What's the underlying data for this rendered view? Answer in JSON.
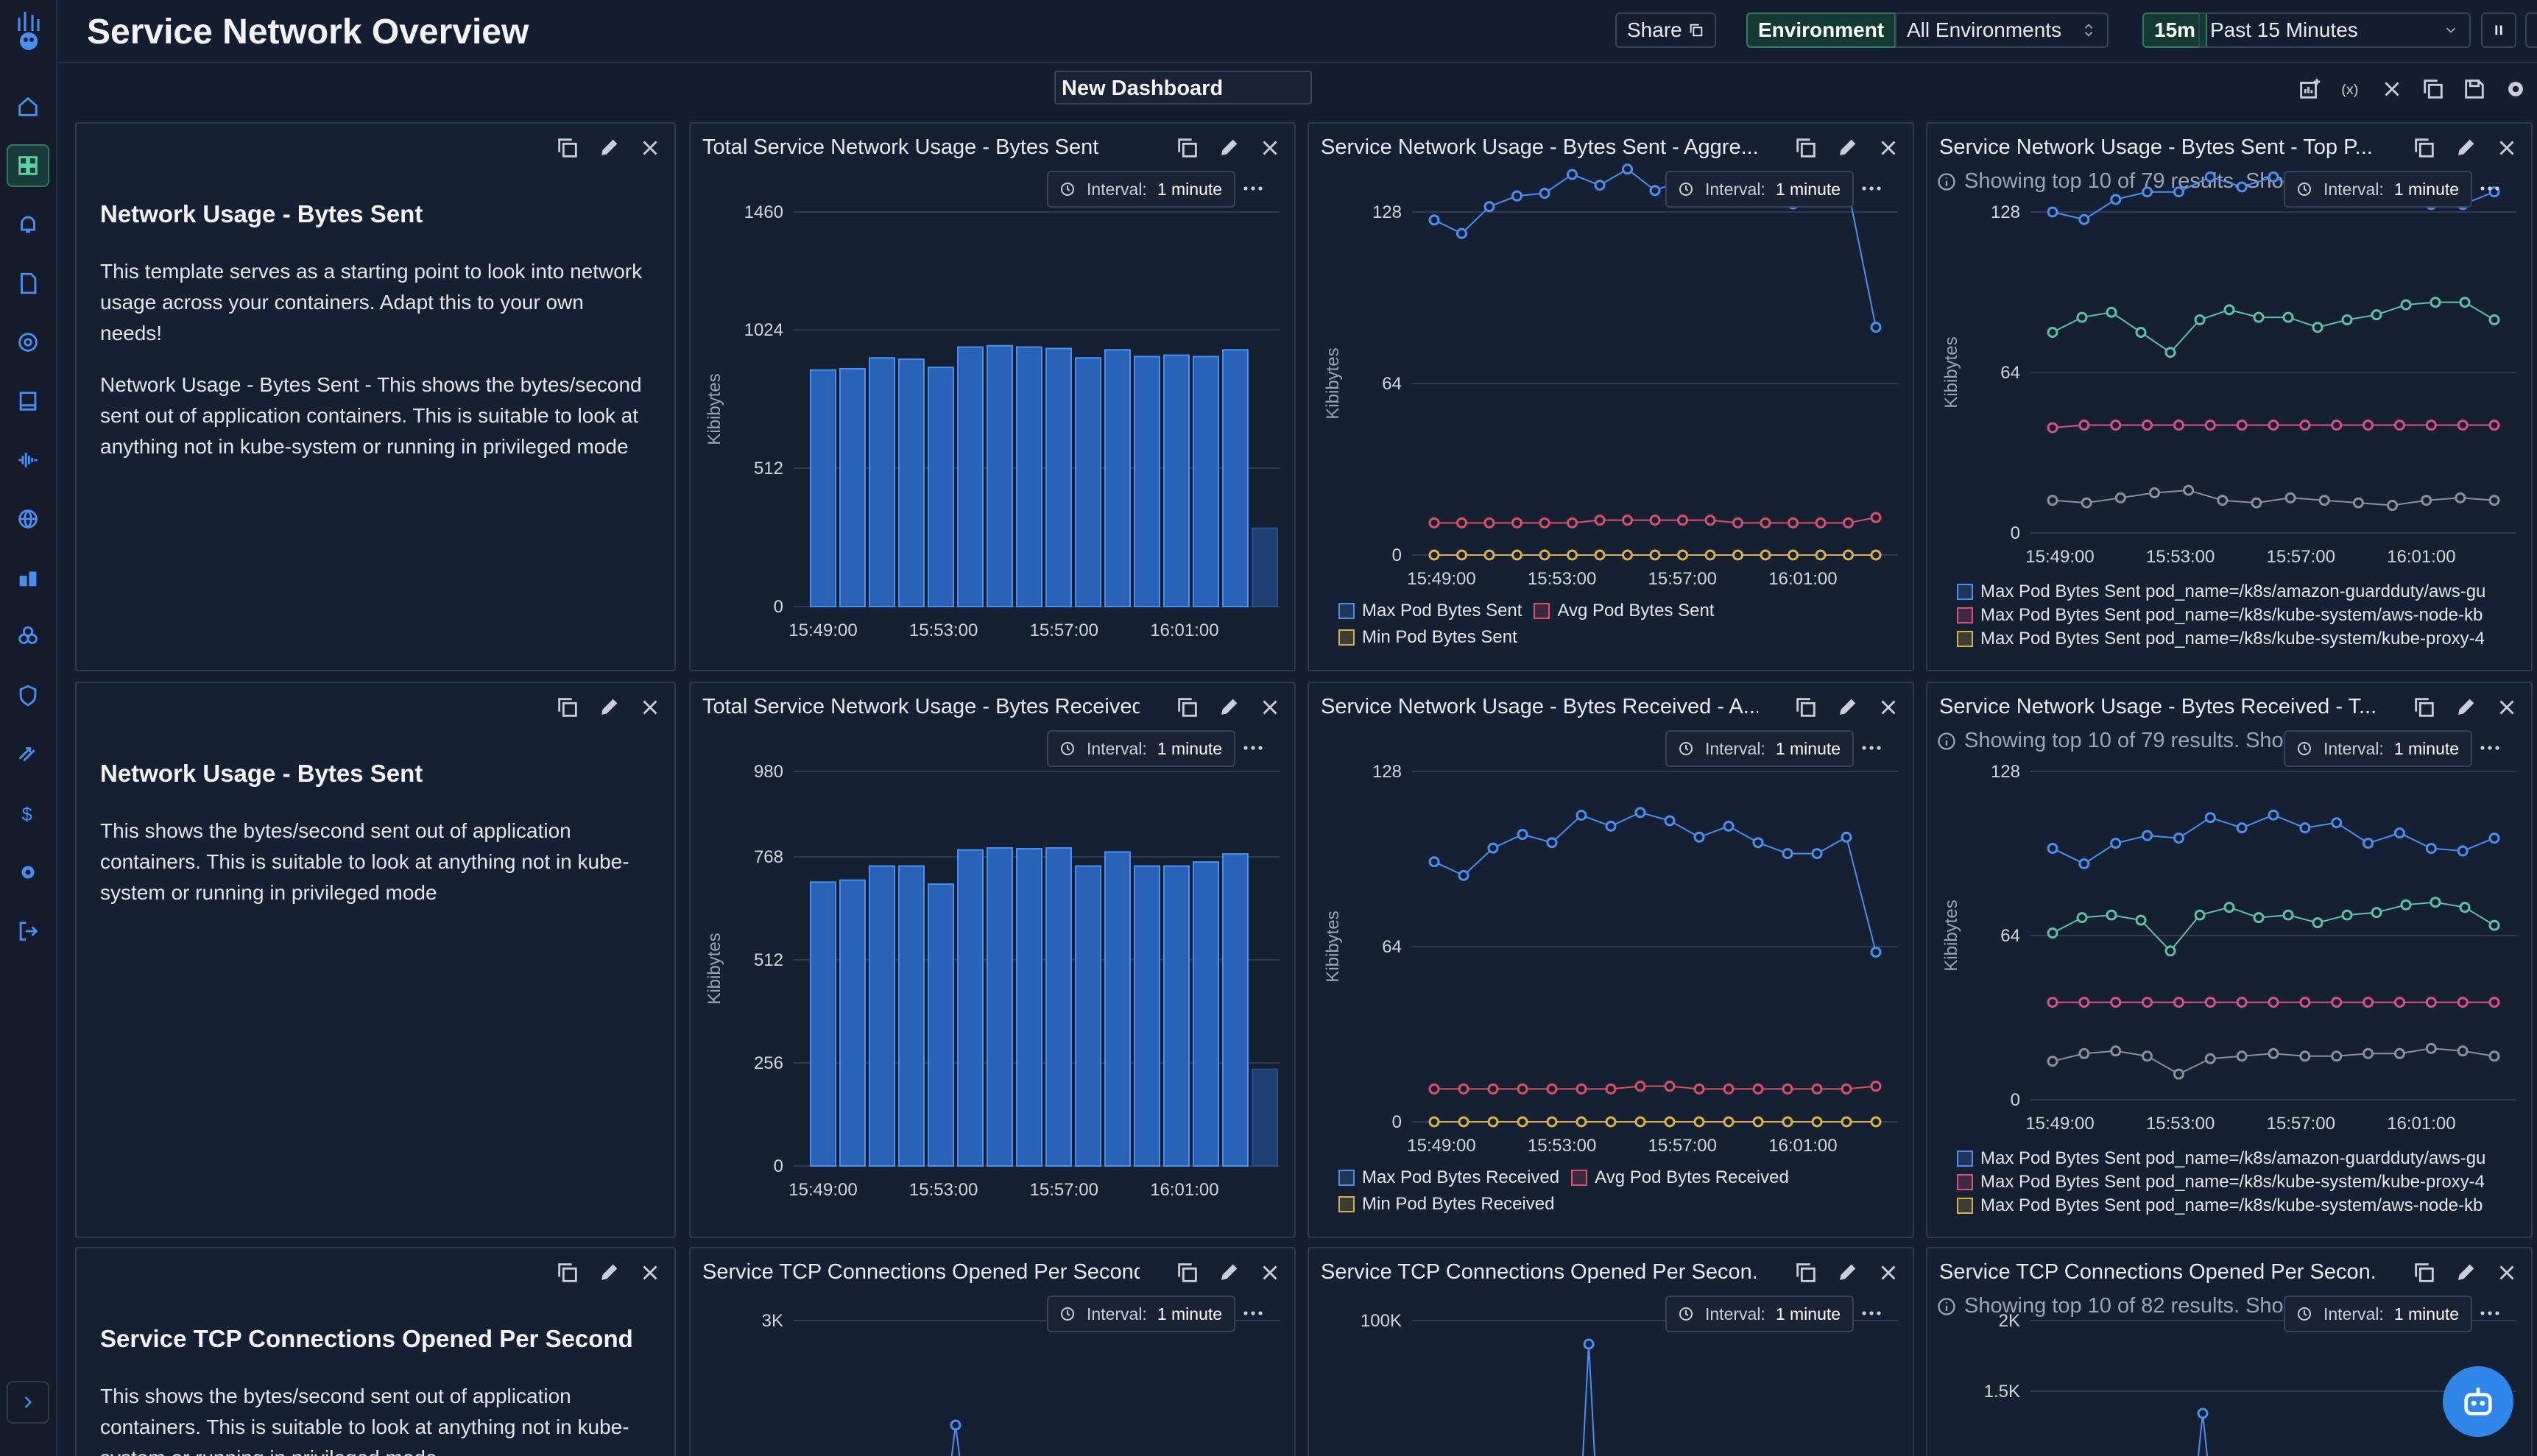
{
  "header": {
    "title": "Service Network Overview",
    "share_label": "Share",
    "environment_label": "Environment",
    "environment_value": "All Environments",
    "time_chip": "15m",
    "time_range": "Past 15 Minutes"
  },
  "toolbar": {
    "dashboard_name": "New Dashboard"
  },
  "text_panels": [
    {
      "heading": "Network Usage - Bytes Sent",
      "paragraphs": [
        "This template serves as a starting point to look into network usage across your containers. Adapt this to your own needs!",
        "Network Usage - Bytes Sent - This shows the bytes/second sent out of application containers. This is suitable to look at anything not in kube-system or running in privileged mode"
      ]
    },
    {
      "heading": "Network Usage - Bytes Sent",
      "paragraphs": [
        "This shows the bytes/second sent out of application containers. This is suitable to look at anything not in kube-system or running in privileged mode"
      ]
    },
    {
      "heading": "Service TCP Connections Opened Per Second",
      "paragraphs": [
        "This shows the bytes/second sent out of application containers. This is suitable to look at anything not in kube-system or running in privileged mode"
      ]
    }
  ],
  "interval": {
    "label": "Interval:",
    "value": "1 minute"
  },
  "colors": {
    "blue": "#4a8ff0",
    "teal": "#5fc0a8",
    "pink": "#d9508e",
    "yellow": "#d9b04c",
    "gray": "#8a919c",
    "red": "#d9506a"
  },
  "chart_data": [
    {
      "type": "bar",
      "title": "Total Service Network Usage - Bytes Sent",
      "ylabel": "Kibibytes",
      "ylim": [
        0,
        1460
      ],
      "yticks": [
        0,
        512,
        1024,
        1460
      ],
      "xticks": [
        "15:49:00",
        "15:53:00",
        "15:57:00",
        "16:01:00"
      ],
      "values": [
        875,
        880,
        920,
        915,
        885,
        960,
        965,
        960,
        955,
        920,
        950,
        925,
        930,
        925,
        950,
        290
      ]
    },
    {
      "type": "line",
      "title": "Service Network Usage - Bytes Sent - Aggre...",
      "ylabel": "Kibibytes",
      "ylim": [
        0,
        128
      ],
      "yticks": [
        0,
        64,
        128
      ],
      "xticks": [
        "15:49:00",
        "15:53:00",
        "15:57:00",
        "16:01:00"
      ],
      "series": [
        {
          "name": "Max Pod Bytes Sent",
          "color": "#4a8ff0",
          "values": [
            125,
            120,
            130,
            134,
            135,
            142,
            138,
            144,
            136,
            140,
            132,
            139,
            133,
            131,
            132,
            136,
            85
          ]
        },
        {
          "name": "Avg Pod Bytes Sent",
          "color": "#d9506a",
          "values": [
            12,
            12,
            12,
            12,
            12,
            12,
            13,
            13,
            13,
            13,
            13,
            12,
            12,
            12,
            12,
            12,
            14
          ]
        },
        {
          "name": "Min Pod Bytes Sent",
          "color": "#d9b04c",
          "values": [
            0,
            0,
            0,
            0,
            0,
            0,
            0,
            0,
            0,
            0,
            0,
            0,
            0,
            0,
            0,
            0,
            0
          ]
        }
      ]
    },
    {
      "type": "line",
      "title": "Service Network Usage - Bytes Sent - Top P...",
      "note": "Showing top 10 of 79 results. Sho",
      "ylabel": "Kibibytes",
      "ylim": [
        0,
        128
      ],
      "yticks": [
        0,
        64,
        128
      ],
      "xticks": [
        "15:49:00",
        "15:53:00",
        "15:57:00",
        "16:01:00"
      ],
      "series": [
        {
          "name": "Max Pod Bytes Sent pod_name=/k8s/amazon-guardduty/aws-gu",
          "color": "#4a8ff0",
          "values": [
            128,
            125,
            133,
            136,
            136,
            142,
            138,
            142,
            136,
            140,
            133,
            138,
            131,
            131,
            136
          ]
        },
        {
          "name": "Max Pod Bytes Sent pod_name=/k8s/kube-system/aws-node-kb",
          "color": "#d9508e",
          "values": [
            42,
            43,
            43,
            43,
            43,
            43,
            43,
            43,
            43,
            43,
            43,
            43,
            43,
            43,
            43
          ]
        },
        {
          "name": "Max Pod Bytes Sent pod_name=/k8s/kube-system/kube-proxy-4",
          "color": "#d9b04c",
          "values": []
        },
        {
          "name": "",
          "color": "#5fc0a8",
          "values": [
            80,
            86,
            88,
            80,
            72,
            85,
            89,
            86,
            86,
            82,
            85,
            87,
            91,
            92,
            92,
            85
          ]
        },
        {
          "name": "",
          "color": "#8a919c",
          "values": [
            13,
            12,
            14,
            16,
            17,
            13,
            12,
            14,
            13,
            12,
            11,
            13,
            14,
            13
          ]
        }
      ]
    },
    {
      "type": "bar",
      "title": "Total Service Network Usage - Bytes Received",
      "ylabel": "Kibibytes",
      "ylim": [
        0,
        980
      ],
      "yticks": [
        0,
        256,
        512,
        768,
        980
      ],
      "xticks": [
        "15:49:00",
        "15:53:00",
        "15:57:00",
        "16:01:00"
      ],
      "values": [
        705,
        710,
        745,
        745,
        700,
        785,
        790,
        788,
        790,
        745,
        780,
        745,
        745,
        755,
        775,
        240
      ]
    },
    {
      "type": "line",
      "title": "Service Network Usage - Bytes Received - A...",
      "ylabel": "Kibibytes",
      "ylim": [
        0,
        128
      ],
      "yticks": [
        0,
        64,
        128
      ],
      "xticks": [
        "15:49:00",
        "15:53:00",
        "15:57:00",
        "16:01:00"
      ],
      "series": [
        {
          "name": "Max Pod Bytes Received",
          "color": "#4a8ff0",
          "values": [
            95,
            90,
            100,
            105,
            102,
            112,
            108,
            113,
            110,
            104,
            108,
            102,
            98,
            98,
            104,
            62
          ]
        },
        {
          "name": "Avg Pod Bytes Received",
          "color": "#d9506a",
          "values": [
            12,
            12,
            12,
            12,
            12,
            12,
            12,
            13,
            13,
            12,
            12,
            12,
            12,
            12,
            12,
            13
          ]
        },
        {
          "name": "Min Pod Bytes Received",
          "color": "#d9b04c",
          "values": [
            0,
            0,
            0,
            0,
            0,
            0,
            0,
            0,
            0,
            0,
            0,
            0,
            0,
            0,
            0,
            0
          ]
        }
      ]
    },
    {
      "type": "line",
      "title": "Service Network Usage - Bytes Received - T...",
      "note": "Showing top 10 of 79 results. Sho",
      "ylabel": "Kibibytes",
      "ylim": [
        0,
        128
      ],
      "yticks": [
        0,
        64,
        128
      ],
      "xticks": [
        "15:49:00",
        "15:53:00",
        "15:57:00",
        "16:01:00"
      ],
      "series": [
        {
          "name": "Max Pod Bytes Sent pod_name=/k8s/amazon-guardduty/aws-gu",
          "color": "#4a8ff0",
          "values": [
            98,
            92,
            100,
            103,
            102,
            110,
            106,
            111,
            106,
            108,
            100,
            104,
            98,
            97,
            102
          ]
        },
        {
          "name": "Max Pod Bytes Sent pod_name=/k8s/kube-system/kube-proxy-4",
          "color": "#d9508e",
          "values": [
            38,
            38,
            38,
            38,
            38,
            38,
            38,
            38,
            38,
            38,
            38,
            38,
            38,
            38,
            38
          ]
        },
        {
          "name": "Max Pod Bytes Sent pod_name=/k8s/kube-system/aws-node-kb",
          "color": "#d9b04c",
          "values": []
        },
        {
          "name": "",
          "color": "#5fc0a8",
          "values": [
            65,
            71,
            72,
            70,
            58,
            72,
            75,
            71,
            72,
            69,
            72,
            73,
            76,
            77,
            75,
            68
          ]
        },
        {
          "name": "",
          "color": "#8a919c",
          "values": [
            15,
            18,
            19,
            17,
            10,
            16,
            17,
            18,
            17,
            17,
            18,
            18,
            20,
            19,
            17
          ]
        }
      ]
    },
    {
      "type": "line",
      "title": "Service TCP Connections Opened Per Second",
      "ylim": [
        0,
        3000
      ],
      "yticks": [
        "3K"
      ],
      "series": [
        {
          "name": "",
          "color": "#4a8ff0",
          "values": []
        }
      ]
    },
    {
      "type": "line",
      "title": "Service TCP Connections Opened Per Secon...",
      "ylim": [
        0,
        100000
      ],
      "yticks": [
        "100K"
      ],
      "series": [
        {
          "name": "",
          "color": "#4a8ff0",
          "values": []
        }
      ]
    },
    {
      "type": "line",
      "title": "Service TCP Connections Opened Per Secon...",
      "note": "Showing top 10 of 82 results. Sho",
      "ylim": [
        0,
        2000
      ],
      "yticks": [
        "2K",
        "1.5K"
      ],
      "series": [
        {
          "name": "",
          "color": "#4a8ff0",
          "values": []
        }
      ]
    }
  ]
}
